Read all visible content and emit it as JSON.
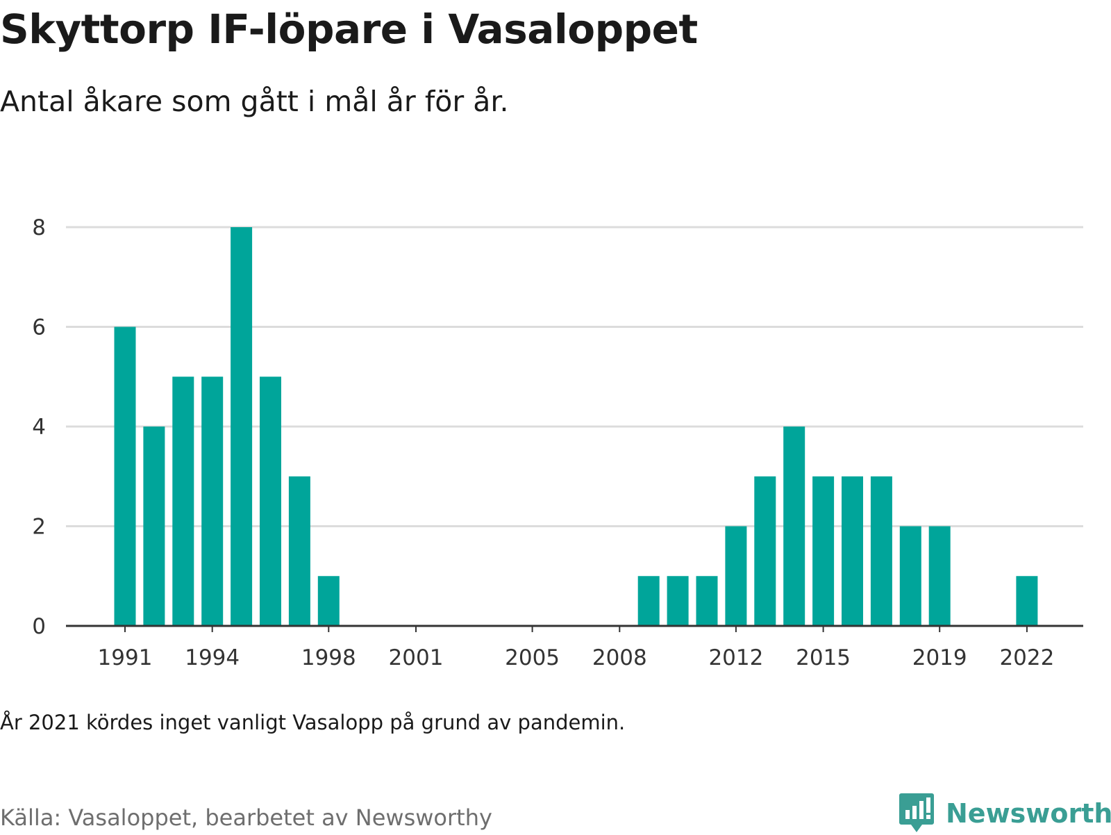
{
  "header": {
    "title": "Skyttorp IF-löpare i Vasaloppet",
    "subtitle": "Antal åkare som gått i mål år för år."
  },
  "footer": {
    "note": "År 2021 kördes inget vanligt Vasalopp på grund av pandemin.",
    "source": "Källa: Vasaloppet, bearbetet av Newsworthy",
    "brand": "Newsworthy"
  },
  "colors": {
    "bar": "#00a59a",
    "brand": "#3a9e94",
    "grid": "#dcdcdc",
    "axis": "#333333"
  },
  "icons": {
    "brand_logo": "chart-speech-bubble-icon"
  },
  "chart_data": {
    "type": "bar",
    "categories": [
      1991,
      1992,
      1993,
      1994,
      1995,
      1996,
      1997,
      1998,
      1999,
      2000,
      2001,
      2002,
      2003,
      2004,
      2005,
      2006,
      2007,
      2008,
      2009,
      2010,
      2011,
      2012,
      2013,
      2014,
      2015,
      2016,
      2017,
      2018,
      2019,
      2020,
      2021,
      2022
    ],
    "values": [
      6,
      4,
      5,
      5,
      8,
      5,
      3,
      1,
      0,
      0,
      0,
      0,
      0,
      0,
      0,
      0,
      0,
      0,
      1,
      1,
      1,
      2,
      3,
      4,
      3,
      3,
      3,
      2,
      2,
      0,
      0,
      1
    ],
    "x_tick_labels": [
      "1991",
      "1994",
      "1998",
      "2001",
      "2005",
      "2008",
      "2012",
      "2015",
      "2019",
      "2022"
    ],
    "y_ticks": [
      0,
      2,
      4,
      6,
      8
    ],
    "ylim": [
      0,
      8
    ],
    "grid": true,
    "legend": "none"
  }
}
